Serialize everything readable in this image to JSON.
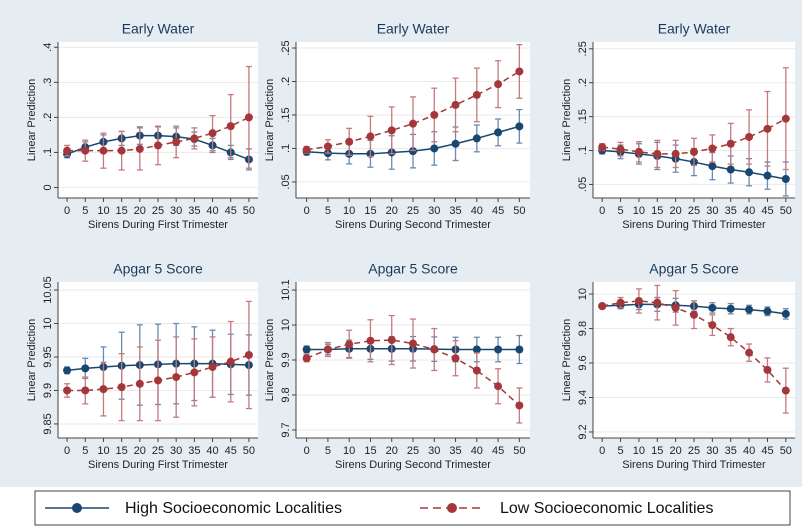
{
  "chart_data": [
    {
      "type": "line",
      "title": "Early Water",
      "x_label": "Sirens During First Trimester",
      "y_label": "Linear Prediction",
      "x": [
        0,
        5,
        10,
        15,
        20,
        25,
        30,
        35,
        40,
        45,
        50
      ],
      "xlim": [
        -2.5,
        52.5
      ],
      "xticks": [
        0,
        5,
        10,
        15,
        20,
        25,
        30,
        35,
        40,
        45,
        50
      ],
      "ylim": [
        -0.03,
        0.415
      ],
      "yticks": [
        0,
        {
          "value": 0.1,
          "label": ".1"
        },
        {
          "value": 0.2,
          "label": ".2"
        },
        {
          "value": 0.3,
          "label": ".3"
        },
        {
          "value": 0.4,
          "label": ".4"
        }
      ],
      "series": [
        {
          "name": "High Socioeconomic Localities",
          "color": "#1a476f",
          "dashed": false,
          "values": [
            0.095,
            0.115,
            0.13,
            0.14,
            0.148,
            0.148,
            0.145,
            0.138,
            0.12,
            0.1,
            0.08
          ],
          "errors": [
            0.01,
            0.015,
            0.02,
            0.02,
            0.025,
            0.025,
            0.025,
            0.02,
            0.02,
            0.02,
            0.03
          ]
        },
        {
          "name": "Low Socioeconomic Localities",
          "color": "#a5373b",
          "dashed": true,
          "values": [
            0.105,
            0.105,
            0.105,
            0.105,
            0.11,
            0.12,
            0.13,
            0.14,
            0.155,
            0.175,
            0.2
          ],
          "errors": [
            0.015,
            0.03,
            0.05,
            0.055,
            0.06,
            0.055,
            0.045,
            0.03,
            0.05,
            0.09,
            0.145
          ]
        }
      ]
    },
    {
      "type": "line",
      "title": "Early Water",
      "x_label": "Sirens During Second Trimester",
      "y_label": "Linear Prediction",
      "x": [
        0,
        5,
        10,
        15,
        20,
        25,
        30,
        35,
        40,
        45,
        50
      ],
      "xlim": [
        -2.5,
        52.5
      ],
      "xticks": [
        0,
        5,
        10,
        15,
        20,
        25,
        30,
        35,
        40,
        45,
        50
      ],
      "ylim": [
        0.026,
        0.259
      ],
      "yticks": [
        {
          "value": 0.05,
          "label": ".05"
        },
        {
          "value": 0.1,
          "label": ".1"
        },
        {
          "value": 0.15,
          "label": ".15"
        },
        {
          "value": 0.2,
          "label": ".2"
        },
        {
          "value": 0.25,
          "label": ".25"
        }
      ],
      "series": [
        {
          "name": "High Socioeconomic Localities",
          "color": "#1a476f",
          "dashed": false,
          "values": [
            0.095,
            0.093,
            0.092,
            0.092,
            0.094,
            0.096,
            0.1,
            0.107,
            0.115,
            0.124,
            0.133
          ],
          "errors": [
            0.005,
            0.01,
            0.015,
            0.02,
            0.025,
            0.025,
            0.025,
            0.025,
            0.02,
            0.02,
            0.025
          ]
        },
        {
          "name": "Low Socioeconomic Localities",
          "color": "#a5373b",
          "dashed": true,
          "values": [
            0.098,
            0.103,
            0.11,
            0.118,
            0.127,
            0.137,
            0.15,
            0.165,
            0.18,
            0.196,
            0.215
          ],
          "errors": [
            0.005,
            0.01,
            0.02,
            0.03,
            0.035,
            0.04,
            0.04,
            0.04,
            0.04,
            0.035,
            0.04
          ]
        }
      ]
    },
    {
      "type": "line",
      "title": "Early Water",
      "x_label": "Sirens During Third Trimester",
      "y_label": "Linear Prediction",
      "x": [
        0,
        5,
        10,
        15,
        20,
        25,
        30,
        35,
        40,
        45,
        50
      ],
      "xlim": [
        -2.5,
        52.5
      ],
      "xticks": [
        0,
        5,
        10,
        15,
        20,
        25,
        30,
        35,
        40,
        45,
        50
      ],
      "ylim": [
        0.03,
        0.26
      ],
      "yticks": [
        {
          "value": 0.05,
          "label": ".05"
        },
        {
          "value": 0.1,
          "label": ".1"
        },
        {
          "value": 0.15,
          "label": ".15"
        },
        {
          "value": 0.2,
          "label": ".2"
        },
        {
          "value": 0.25,
          "label": ".25"
        }
      ],
      "series": [
        {
          "name": "High Socioeconomic Localities",
          "color": "#1a476f",
          "dashed": false,
          "values": [
            0.1,
            0.098,
            0.095,
            0.092,
            0.088,
            0.083,
            0.077,
            0.072,
            0.068,
            0.063,
            0.058
          ],
          "errors": [
            0.005,
            0.01,
            0.015,
            0.02,
            0.02,
            0.02,
            0.02,
            0.02,
            0.02,
            0.02,
            0.025
          ]
        },
        {
          "name": "Low Socioeconomic Localities",
          "color": "#a5373b",
          "dashed": true,
          "values": [
            0.105,
            0.102,
            0.098,
            0.095,
            0.095,
            0.098,
            0.103,
            0.11,
            0.12,
            0.132,
            0.147
          ],
          "errors": [
            0.005,
            0.01,
            0.015,
            0.02,
            0.02,
            0.02,
            0.02,
            0.03,
            0.04,
            0.055,
            0.075
          ]
        }
      ]
    },
    {
      "type": "line",
      "title": "Apgar 5 Score",
      "x_label": "Sirens During First Trimester",
      "y_label": "Linear Prediction",
      "x": [
        0,
        5,
        10,
        15,
        20,
        25,
        30,
        35,
        40,
        45,
        50
      ],
      "xlim": [
        -2.5,
        52.5
      ],
      "xticks": [
        0,
        5,
        10,
        15,
        20,
        25,
        30,
        35,
        40,
        45,
        50
      ],
      "ylim": [
        9.829,
        10.062
      ],
      "yticks": [
        9.85,
        9.9,
        9.95,
        10,
        10.05
      ],
      "series": [
        {
          "name": "High Socioeconomic Localities",
          "color": "#1a476f",
          "dashed": false,
          "values": [
            9.93,
            9.933,
            9.935,
            9.937,
            9.938,
            9.939,
            9.94,
            9.94,
            9.94,
            9.939,
            9.938
          ],
          "errors": [
            0.005,
            0.015,
            0.03,
            0.05,
            0.06,
            0.06,
            0.06,
            0.055,
            0.05,
            0.045,
            0.045
          ]
        },
        {
          "name": "Low Socioeconomic Localities",
          "color": "#a5373b",
          "dashed": true,
          "values": [
            9.9,
            9.9,
            9.902,
            9.905,
            9.91,
            9.915,
            9.92,
            9.927,
            9.935,
            9.943,
            9.953
          ],
          "errors": [
            0.01,
            0.02,
            0.04,
            0.05,
            0.055,
            0.06,
            0.06,
            0.05,
            0.045,
            0.06,
            0.08
          ]
        }
      ]
    },
    {
      "type": "line",
      "title": "Apgar 5 Score",
      "x_label": "Sirens During Second Trimester",
      "y_label": "Linear Prediction",
      "x": [
        0,
        5,
        10,
        15,
        20,
        25,
        30,
        35,
        40,
        45,
        50
      ],
      "xlim": [
        -2.5,
        52.5
      ],
      "xticks": [
        0,
        5,
        10,
        15,
        20,
        25,
        30,
        35,
        40,
        45,
        50
      ],
      "ylim": [
        9.677,
        10.123
      ],
      "yticks": [
        9.7,
        9.8,
        9.9,
        10,
        10.1
      ],
      "series": [
        {
          "name": "High Socioeconomic Localities",
          "color": "#1a476f",
          "dashed": false,
          "values": [
            9.93,
            9.93,
            9.932,
            9.932,
            9.932,
            9.932,
            9.931,
            9.93,
            9.93,
            9.93,
            9.93
          ],
          "errors": [
            0.01,
            0.015,
            0.025,
            0.03,
            0.035,
            0.035,
            0.035,
            0.035,
            0.035,
            0.035,
            0.04
          ]
        },
        {
          "name": "Low Socioeconomic Localities",
          "color": "#a5373b",
          "dashed": true,
          "values": [
            9.905,
            9.93,
            9.945,
            9.955,
            9.957,
            9.947,
            9.93,
            9.905,
            9.87,
            9.825,
            9.77
          ],
          "errors": [
            0.01,
            0.02,
            0.04,
            0.06,
            0.07,
            0.07,
            0.06,
            0.05,
            0.05,
            0.05,
            0.05
          ]
        }
      ]
    },
    {
      "type": "line",
      "title": "Apgar 5 Score",
      "x_label": "Sirens During Third Trimester",
      "y_label": "Linear Prediction",
      "x": [
        0,
        5,
        10,
        15,
        20,
        25,
        30,
        35,
        40,
        45,
        50
      ],
      "xlim": [
        -2.5,
        52.5
      ],
      "xticks": [
        0,
        5,
        10,
        15,
        20,
        25,
        30,
        35,
        40,
        45,
        50
      ],
      "ylim": [
        9.165,
        10.07
      ],
      "yticks": [
        9.2,
        9.4,
        9.6,
        9.8,
        10
      ],
      "series": [
        {
          "name": "High Socioeconomic Localities",
          "color": "#1a476f",
          "dashed": false,
          "values": [
            9.93,
            9.935,
            9.94,
            9.94,
            9.935,
            9.93,
            9.92,
            9.915,
            9.91,
            9.9,
            9.885
          ],
          "errors": [
            0.01,
            0.02,
            0.03,
            0.04,
            0.04,
            0.03,
            0.03,
            0.03,
            0.025,
            0.025,
            0.03
          ]
        },
        {
          "name": "Low Socioeconomic Localities",
          "color": "#a5373b",
          "dashed": true,
          "values": [
            9.93,
            9.95,
            9.96,
            9.95,
            9.92,
            9.88,
            9.82,
            9.75,
            9.66,
            9.56,
            9.44
          ],
          "errors": [
            0.01,
            0.03,
            0.07,
            0.1,
            0.1,
            0.08,
            0.06,
            0.05,
            0.05,
            0.07,
            0.13
          ]
        }
      ]
    }
  ]
}
